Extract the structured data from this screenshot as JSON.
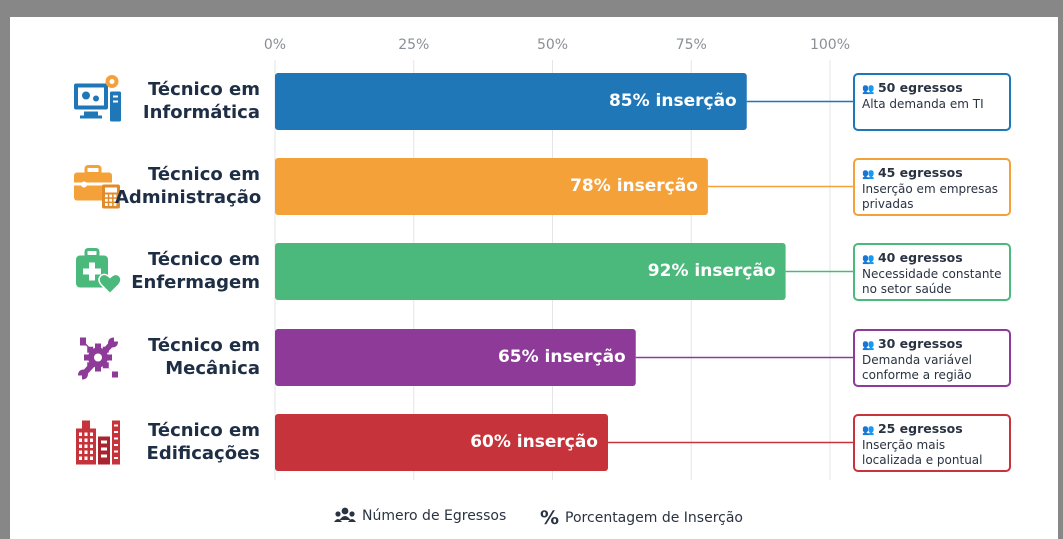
{
  "chart_data": {
    "type": "bar",
    "orientation": "horizontal",
    "x_ticks": [
      "0%",
      "25%",
      "50%",
      "75%",
      "100%"
    ],
    "xlim": [
      0,
      100
    ],
    "grid": true,
    "categories": [
      {
        "line1": "Técnico em",
        "line2": "Informática",
        "value": 85,
        "label": "85% inserção",
        "color": "#1f77b8",
        "count": "50 egressos",
        "desc": "Alta demanda em TI",
        "icon": "computer-gear-icon"
      },
      {
        "line1": "Técnico em",
        "line2": "Administração",
        "value": 78,
        "label": "78% inserção",
        "color": "#f5a13a",
        "count": "45 egressos",
        "desc": "Inserção em empresas privadas",
        "icon": "briefcase-calculator-icon"
      },
      {
        "line1": "Técnico em",
        "line2": "Enfermagem",
        "value": 92,
        "label": "92% inserção",
        "color": "#4cb97c",
        "count": "40 egressos",
        "desc": "Necessidade constante no setor saúde",
        "icon": "medical-kit-heart-icon"
      },
      {
        "line1": "Técnico em",
        "line2": "Mecânica",
        "value": 65,
        "label": "65% inserção",
        "color": "#8e3a99",
        "count": "30 egressos",
        "desc": "Demanda variável conforme a região",
        "icon": "wrench-gear-icon"
      },
      {
        "line1": "Técnico em",
        "line2": "Edificações",
        "value": 60,
        "label": "60% inserção",
        "color": "#c7333a",
        "count": "25 egressos",
        "desc": "Inserção mais localizada e pontual",
        "icon": "buildings-icon"
      }
    ]
  },
  "legend": {
    "egressos_label": "Número de Egressos",
    "percent_symbol": "%",
    "percent_label": "Porcentagem de Inserção"
  }
}
